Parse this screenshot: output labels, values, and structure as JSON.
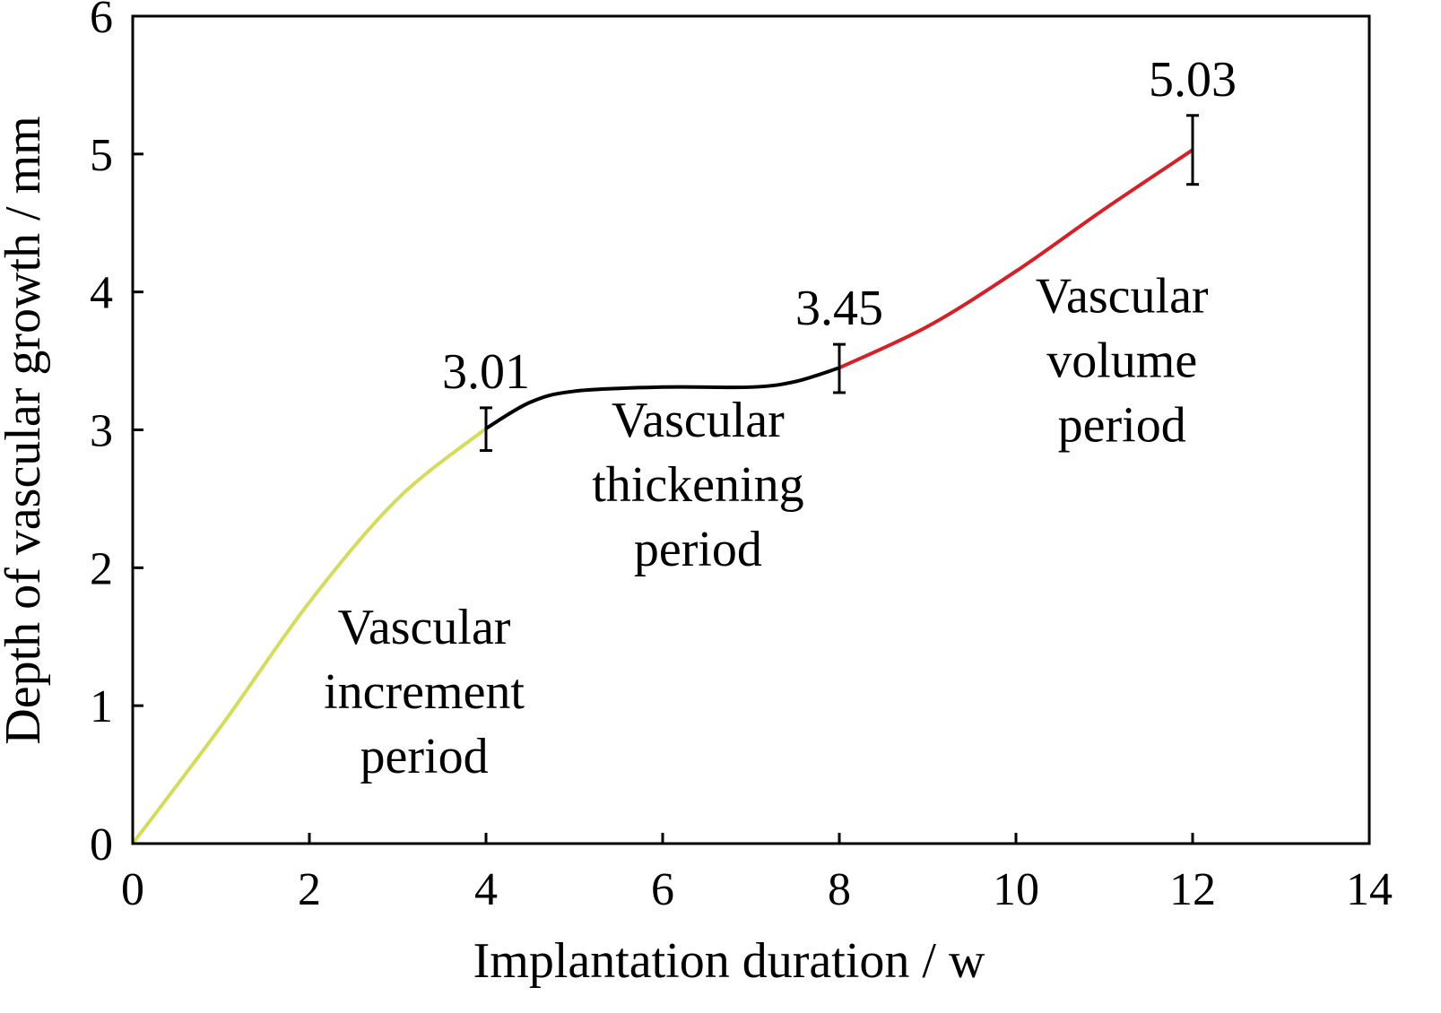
{
  "chart_data": {
    "type": "line",
    "title": "",
    "xlabel": "Implantation duration / w",
    "ylabel": "Depth of vascular growth / mm",
    "xlim": [
      0,
      14
    ],
    "ylim": [
      0,
      6
    ],
    "xticks": [
      0,
      2,
      4,
      6,
      8,
      10,
      12,
      14
    ],
    "yticks": [
      0,
      1,
      2,
      3,
      4,
      5,
      6
    ],
    "grid": false,
    "series": [
      {
        "name": "Vascular increment period",
        "color": "#d4dc5c",
        "x": [
          0,
          1,
          2,
          3,
          4
        ],
        "y": [
          0,
          0.85,
          1.75,
          2.5,
          3.01
        ]
      },
      {
        "name": "Vascular thickening period",
        "color": "#000000",
        "x": [
          4,
          4.5,
          5,
          6,
          7,
          7.5,
          8
        ],
        "y": [
          3.01,
          3.2,
          3.28,
          3.31,
          3.31,
          3.35,
          3.45
        ]
      },
      {
        "name": "Vascular volume period",
        "color": "#d42027",
        "x": [
          8,
          9,
          10,
          11,
          12
        ],
        "y": [
          3.45,
          3.75,
          4.15,
          4.6,
          5.03
        ]
      }
    ],
    "error_bars": [
      {
        "x": 4,
        "y": 3.01,
        "low": 2.85,
        "high": 3.16,
        "label": "3.01"
      },
      {
        "x": 8,
        "y": 3.45,
        "low": 3.27,
        "high": 3.62,
        "label": "3.45"
      },
      {
        "x": 12,
        "y": 5.03,
        "low": 4.78,
        "high": 5.28,
        "label": "5.03"
      }
    ],
    "annotations": [
      {
        "lines": [
          "Vascular",
          "increment",
          "period"
        ],
        "x": 3.3,
        "y": 1.45
      },
      {
        "lines": [
          "Vascular",
          "thickening",
          "period"
        ],
        "x": 6.4,
        "y": 2.95
      },
      {
        "lines": [
          "Vascular",
          "volume",
          "period"
        ],
        "x": 11.2,
        "y": 3.85
      }
    ]
  }
}
